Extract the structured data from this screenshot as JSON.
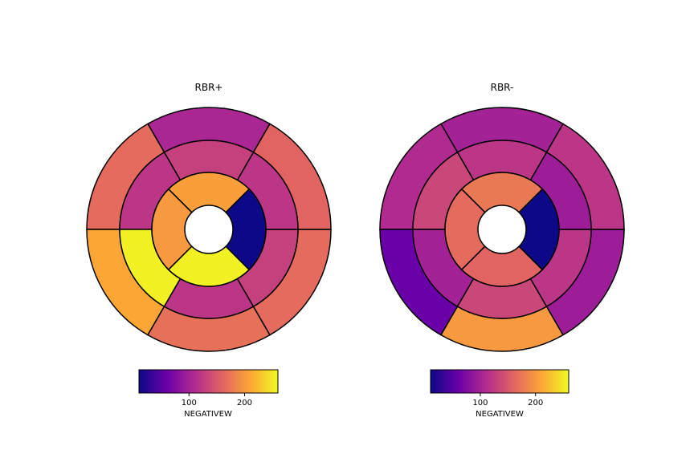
{
  "colormap": "plasma",
  "colormap_stops": [
    "#0d0887",
    "#6a00a8",
    "#b12a90",
    "#e16462",
    "#fca636",
    "#f0f921"
  ],
  "chart_data": [
    {
      "type": "bullseye",
      "title": "RBR+",
      "colorbar_label": "NEGATIVEW",
      "clim": [
        10,
        260
      ],
      "colorbar_ticks": [
        100,
        200
      ],
      "rings": [
        {
          "name": "basal",
          "values": [
            105,
            165,
            210,
            170,
            165,
            160
          ]
        },
        {
          "name": "mid",
          "values": [
            130,
            120,
            255,
            120,
            130,
            120
          ]
        },
        {
          "name": "apical",
          "values": [
            205,
            200,
            255,
            10
          ]
        }
      ]
    },
    {
      "type": "bullseye",
      "title": "RBR-",
      "colorbar_label": "NEGATIVEW",
      "clim": [
        10,
        260
      ],
      "colorbar_ticks": [
        100,
        200
      ],
      "rings": [
        {
          "name": "basal",
          "values": [
            100,
            110,
            60,
            200,
            95,
            120
          ]
        },
        {
          "name": "mid",
          "values": [
            120,
            135,
            100,
            135,
            120,
            95
          ]
        },
        {
          "name": "apical",
          "values": [
            175,
            165,
            160,
            10
          ]
        }
      ]
    }
  ]
}
